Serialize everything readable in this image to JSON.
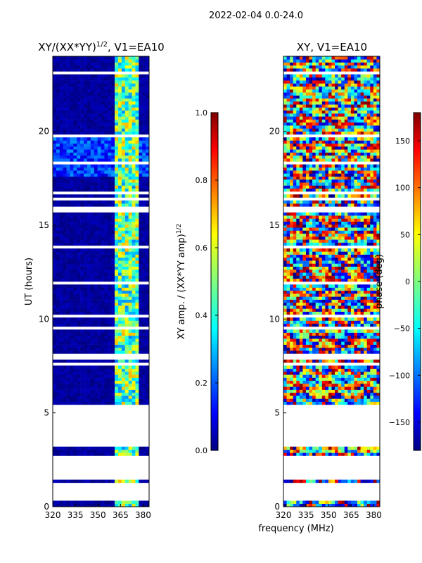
{
  "suptitle": "2022-02-04 0.0-24.0",
  "chart_data": [
    {
      "type": "heatmap",
      "title": "XY/(XX*YY)^1/2, V1=EA10",
      "title_main": "XY/(XX*YY)",
      "title_sup": "1/2",
      "title_tail": ", V1=EA10",
      "xlabel": "frequency (MHz)",
      "ylabel": "UT (hours)",
      "xlim": [
        320,
        384
      ],
      "ylim": [
        0,
        24
      ],
      "xticks": [
        "320",
        "335",
        "350",
        "365",
        "380"
      ],
      "yticks": [
        "0",
        "5",
        "10",
        "15",
        "20"
      ],
      "colorbar": {
        "label": "XY amp. / (XX*YY amp)^1/2",
        "label_main": "XY amp. / (XX*YY amp)",
        "label_sup": "1/2",
        "range": [
          0.0,
          1.0
        ],
        "ticks": [
          "0.0",
          "0.2",
          "0.4",
          "0.6",
          "0.8",
          "1.0"
        ],
        "colormap": "jet"
      },
      "gap_hours": [
        0.2,
        1.2,
        1.4,
        2.6,
        3.1,
        5.4,
        7.8,
        8.1,
        15.6,
        16.0
      ],
      "feature_band_mhz": [
        362,
        378
      ]
    },
    {
      "type": "heatmap",
      "title": "XY, V1=EA10",
      "xlabel": "frequency (MHz)",
      "ylabel": "",
      "xlim": [
        320,
        384
      ],
      "ylim": [
        0,
        24
      ],
      "xticks": [
        "320",
        "335",
        "350",
        "365",
        "380"
      ],
      "yticks": [
        "0",
        "5",
        "10",
        "15",
        "20"
      ],
      "colorbar": {
        "label": "phase (deg)",
        "range": [
          -180,
          180
        ],
        "ticks": [
          "−150",
          "−100",
          "−50",
          "0",
          "50",
          "100",
          "150"
        ],
        "colormap": "jet"
      },
      "gap_hours": [
        0.2,
        1.2,
        1.4,
        2.6,
        3.1,
        5.4,
        7.8,
        8.1,
        15.6,
        16.0
      ]
    }
  ],
  "colors": {
    "background": "#ffffff",
    "amp_low": "#00007f",
    "jet_blue": "#0000ff",
    "jet_cyan": "#00ffff",
    "jet_yellow": "#ffff00",
    "jet_red": "#ff0000",
    "jet_darkred": "#7f0000"
  }
}
